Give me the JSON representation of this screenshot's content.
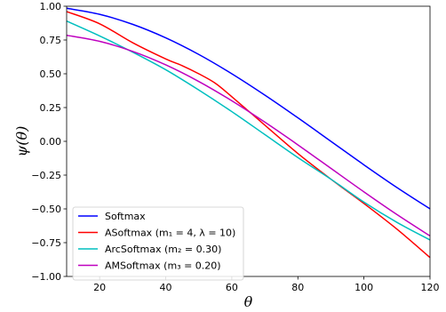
{
  "chart_data": {
    "type": "line",
    "xlabel": "θ",
    "ylabel": "ψ(θ)",
    "xlim": [
      10,
      120
    ],
    "ylim": [
      -1.0,
      1.0
    ],
    "xticks": [
      20,
      40,
      60,
      80,
      100,
      120
    ],
    "xtick_labels": [
      "20",
      "40",
      "60",
      "80",
      "100",
      "120"
    ],
    "yticks": [
      -1.0,
      -0.75,
      -0.5,
      -0.25,
      0.0,
      0.25,
      0.5,
      0.75,
      1.0
    ],
    "ytick_labels": [
      "−1.00",
      "−0.75",
      "−0.50",
      "−0.25",
      "0.00",
      "0.25",
      "0.50",
      "0.75",
      "1.00"
    ],
    "grid": false,
    "legend_position": "bottom-left",
    "series": [
      {
        "name": "Softmax",
        "color": "#0000ff",
        "x": [
          10,
          20,
          30,
          40,
          50,
          60,
          70,
          80,
          90,
          100,
          110,
          120
        ],
        "y": [
          0.985,
          0.94,
          0.866,
          0.766,
          0.643,
          0.5,
          0.342,
          0.174,
          0.0,
          -0.174,
          -0.342,
          -0.5
        ]
      },
      {
        "name": "ASoftmax (m₁ = 4, λ = 10)",
        "color": "#ff0000",
        "x": [
          10,
          20,
          30,
          40,
          45,
          50,
          55,
          60,
          70,
          80,
          90,
          100,
          110,
          120
        ],
        "y": [
          0.96,
          0.87,
          0.73,
          0.61,
          0.56,
          0.5,
          0.43,
          0.33,
          0.12,
          -0.09,
          -0.28,
          -0.46,
          -0.65,
          -0.86
        ]
      },
      {
        "name": "ArcSoftmax (m₂ = 0.30)",
        "color": "#00bfbf",
        "x": [
          10,
          20,
          30,
          40,
          50,
          60,
          70,
          80,
          90,
          100,
          110,
          120
        ],
        "y": [
          0.89,
          0.78,
          0.66,
          0.53,
          0.38,
          0.22,
          0.05,
          -0.12,
          -0.28,
          -0.45,
          -0.6,
          -0.73
        ]
      },
      {
        "name": "AMSoftmax (m₃ = 0.20)",
        "color": "#bf00bf",
        "x": [
          10,
          20,
          30,
          40,
          50,
          60,
          70,
          80,
          90,
          100,
          110,
          120
        ],
        "y": [
          0.785,
          0.74,
          0.666,
          0.566,
          0.443,
          0.3,
          0.142,
          -0.026,
          -0.2,
          -0.374,
          -0.542,
          -0.7
        ]
      }
    ]
  }
}
